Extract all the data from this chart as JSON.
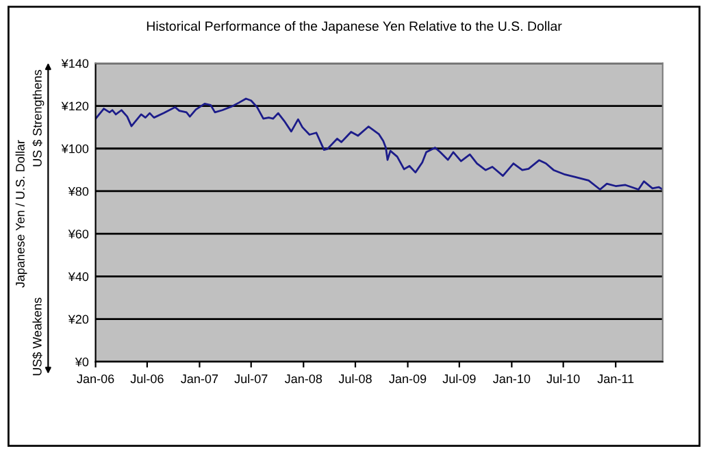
{
  "chart_data": {
    "type": "line",
    "title": "Historical Performance of the Japanese Yen Relative to the U.S. Dollar",
    "ylabel": "Japanese Yen / U.S. Dollar",
    "annotations": [
      "US $ Strengthens",
      "US$ Weakens"
    ],
    "x": [
      "2006-01-01",
      "2006-01-30",
      "2006-02-19",
      "2006-03-01",
      "2006-03-13",
      "2006-04-02",
      "2006-04-22",
      "2006-05-07",
      "2006-06-10",
      "2006-06-25",
      "2006-07-10",
      "2006-07-25",
      "2006-08-28",
      "2006-10-07",
      "2006-10-22",
      "2006-11-16",
      "2006-11-28",
      "2006-12-19",
      "2007-01-19",
      "2007-02-09",
      "2007-02-24",
      "2007-03-22",
      "2007-04-25",
      "2007-05-19",
      "2007-06-13",
      "2007-07-01",
      "2007-07-22",
      "2007-08-13",
      "2007-09-01",
      "2007-09-16",
      "2007-10-04",
      "2007-10-25",
      "2007-11-19",
      "2007-12-13",
      "2007-12-28",
      "2008-01-22",
      "2008-02-15",
      "2008-03-13",
      "2008-03-25",
      "2008-04-28",
      "2008-05-13",
      "2008-06-16",
      "2008-07-10",
      "2008-08-16",
      "2008-09-22",
      "2008-10-07",
      "2008-10-16",
      "2008-10-22",
      "2008-11-01",
      "2008-11-25",
      "2008-12-19",
      "2009-01-07",
      "2009-01-28",
      "2009-02-21",
      "2009-03-07",
      "2009-04-07",
      "2009-04-25",
      "2009-05-22",
      "2009-06-10",
      "2009-07-07",
      "2009-08-07",
      "2009-09-01",
      "2009-10-01",
      "2009-10-25",
      "2009-12-01",
      "2010-01-07",
      "2010-02-07",
      "2010-03-01",
      "2010-04-07",
      "2010-05-01",
      "2010-05-28",
      "2010-07-07",
      "2010-08-10",
      "2010-09-28",
      "2010-11-07",
      "2010-12-01",
      "2011-01-01",
      "2011-02-04",
      "2011-03-22",
      "2011-04-10",
      "2011-05-10",
      "2011-06-01",
      "2011-06-15"
    ],
    "series": [
      {
        "color": "#1c1c8a",
        "values": [
          114,
          118.7,
          117,
          118,
          116,
          118,
          115,
          110.5,
          116,
          114.5,
          116.6,
          114.5,
          116.6,
          119.4,
          117.7,
          117,
          115,
          118.3,
          121,
          120.4,
          117,
          118,
          119.8,
          121.5,
          123.4,
          122.5,
          119.4,
          114,
          114.5,
          114,
          116.6,
          113,
          108,
          113.7,
          110,
          106.5,
          107.4,
          99.4,
          99.8,
          104.6,
          103,
          107.8,
          106,
          110.3,
          106.7,
          103.5,
          100.4,
          94.7,
          98.9,
          96.2,
          90.3,
          91.8,
          88.8,
          93.5,
          98.3,
          100.4,
          98.3,
          94.7,
          98.3,
          94.1,
          97.2,
          93,
          89.9,
          91.4,
          87.2,
          93,
          89.9,
          90.5,
          94.5,
          93,
          89.9,
          87.8,
          86.7,
          85,
          80.8,
          83.5,
          82.4,
          82.9,
          80.8,
          84.6,
          81.3,
          81.9,
          80.8
        ]
      }
    ],
    "xlim": [
      "2006-01-01",
      "2011-06-15"
    ],
    "xticks": [
      {
        "value": "2006-01-01",
        "label": "Jan-06"
      },
      {
        "value": "2006-07-01",
        "label": "Jul-06"
      },
      {
        "value": "2007-01-01",
        "label": "Jan-07"
      },
      {
        "value": "2007-07-01",
        "label": "Jul-07"
      },
      {
        "value": "2008-01-01",
        "label": "Jan-08"
      },
      {
        "value": "2008-07-01",
        "label": "Jul-08"
      },
      {
        "value": "2009-01-01",
        "label": "Jan-09"
      },
      {
        "value": "2009-07-01",
        "label": "Jul-09"
      },
      {
        "value": "2010-01-01",
        "label": "Jan-10"
      },
      {
        "value": "2010-07-01",
        "label": "Jul-10"
      },
      {
        "value": "2011-01-01",
        "label": "Jan-11"
      }
    ],
    "ylim": [
      0,
      140
    ],
    "yticks": [
      {
        "value": 0,
        "label": "¥0"
      },
      {
        "value": 20,
        "label": "¥20"
      },
      {
        "value": 40,
        "label": "¥40"
      },
      {
        "value": 60,
        "label": "¥60"
      },
      {
        "value": 80,
        "label": "¥80"
      },
      {
        "value": 100,
        "label": "¥100"
      },
      {
        "value": 120,
        "label": "¥120"
      },
      {
        "value": 140,
        "label": "¥140"
      }
    ],
    "grid": "y",
    "marker": "none",
    "line_style": "solid"
  }
}
